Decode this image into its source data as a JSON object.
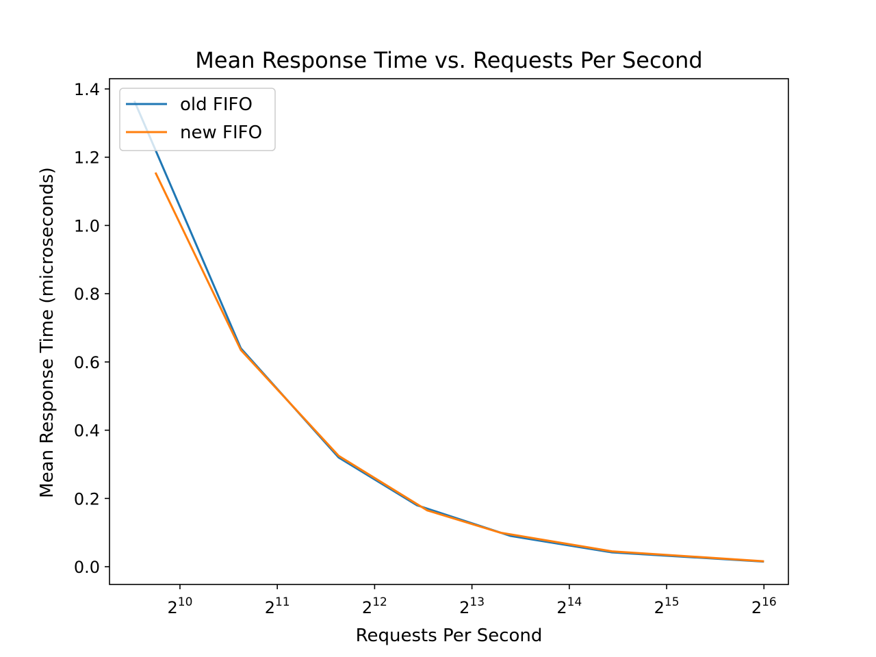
{
  "chart_data": {
    "type": "line",
    "title": "Mean Response Time vs. Requests Per Second",
    "xlabel": "Requests Per Second",
    "ylabel": "Mean Response Time (microseconds)",
    "xscale": "log2",
    "xlim": [
      620,
      78000
    ],
    "ylim": [
      -0.052,
      1.43
    ],
    "x_ticks": [
      {
        "base": "2",
        "exp": "10",
        "value": 1024
      },
      {
        "base": "2",
        "exp": "11",
        "value": 2048
      },
      {
        "base": "2",
        "exp": "12",
        "value": 4096
      },
      {
        "base": "2",
        "exp": "13",
        "value": 8192
      },
      {
        "base": "2",
        "exp": "14",
        "value": 16384
      },
      {
        "base": "2",
        "exp": "15",
        "value": 32768
      },
      {
        "base": "2",
        "exp": "16",
        "value": 65536
      }
    ],
    "y_ticks": [
      {
        "label": "0.0",
        "value": 0.0
      },
      {
        "label": "0.2",
        "value": 0.2
      },
      {
        "label": "0.4",
        "value": 0.4
      },
      {
        "label": "0.6",
        "value": 0.6
      },
      {
        "label": "0.8",
        "value": 0.8
      },
      {
        "label": "1.0",
        "value": 1.0
      },
      {
        "label": "1.2",
        "value": 1.2
      },
      {
        "label": "1.4",
        "value": 1.4
      }
    ],
    "grid": false,
    "legend_position": "upper-left",
    "series": [
      {
        "name": "old FIFO",
        "color": "#1f77b4",
        "points": [
          {
            "x": 740,
            "y": 1.365
          },
          {
            "x": 1580,
            "y": 0.64
          },
          {
            "x": 3170,
            "y": 0.32
          },
          {
            "x": 5540,
            "y": 0.18
          },
          {
            "x": 10800,
            "y": 0.09
          },
          {
            "x": 22200,
            "y": 0.042
          },
          {
            "x": 65536,
            "y": 0.015
          }
        ]
      },
      {
        "name": "new FIFO",
        "color": "#ff7f0e",
        "points": [
          {
            "x": 860,
            "y": 1.155
          },
          {
            "x": 1580,
            "y": 0.635
          },
          {
            "x": 3170,
            "y": 0.325
          },
          {
            "x": 5960,
            "y": 0.165
          },
          {
            "x": 10000,
            "y": 0.1
          },
          {
            "x": 22200,
            "y": 0.045
          },
          {
            "x": 65536,
            "y": 0.016
          }
        ]
      }
    ]
  }
}
